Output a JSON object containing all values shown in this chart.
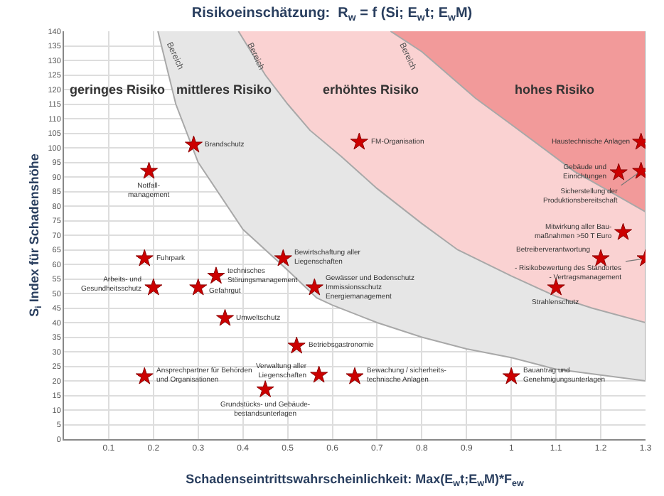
{
  "chart_data": {
    "type": "scatter",
    "title": "Risikoeinschätzung:  R$_{w}$ = f (Si; E$_{w}$t; E$_{w}$M)",
    "xlabel": "Schadenseintrittswahrscheinlichkeit: Max(E$_{w}$t;E$_{w}$M)*F$_{ew}$",
    "ylabel": "S$_{i}$ Index für Schadenshöhe",
    "xlim": [
      0,
      1.3
    ],
    "ylim": [
      0,
      140
    ],
    "xticks": [
      0.1,
      0.2,
      0.3,
      0.4,
      0.5,
      0.6,
      0.7,
      0.8,
      0.9,
      1.0,
      1.1,
      1.2,
      1.3
    ],
    "yticks": [
      0,
      5,
      10,
      15,
      20,
      25,
      30,
      35,
      40,
      45,
      50,
      55,
      60,
      65,
      70,
      75,
      80,
      85,
      90,
      95,
      100,
      105,
      110,
      115,
      120,
      125,
      130,
      135,
      140
    ],
    "grid": true,
    "series": [
      {
        "type": "area",
        "name": "Bereich",
        "color": "#e6e6e6",
        "x": [
          0.21,
          0.25,
          0.3,
          0.4,
          0.5,
          0.565,
          0.6,
          0.7,
          0.8,
          0.9,
          1.0,
          1.1,
          1.2,
          1.3,
          1.3
        ],
        "values": [
          140,
          115,
          95,
          72,
          58,
          48.5,
          46,
          40,
          35,
          31,
          28,
          24,
          22,
          20,
          140
        ]
      },
      {
        "type": "area",
        "name": "Bereich",
        "color": "#fad2d2",
        "x": [
          0.39,
          0.45,
          0.5,
          0.55,
          0.62,
          0.7,
          0.8,
          0.88,
          1.0,
          1.1,
          1.18,
          1.3,
          1.3
        ],
        "values": [
          140,
          125,
          115,
          106,
          97,
          86,
          74,
          65,
          56,
          49,
          45,
          40,
          140
        ]
      },
      {
        "type": "area",
        "name": "Bereich",
        "color": "#f29a9a",
        "x": [
          0.73,
          0.8,
          0.92,
          1.0,
          1.14,
          1.3,
          1.3
        ],
        "values": [
          140,
          133,
          117,
          108,
          92,
          78,
          140
        ]
      },
      {
        "color": "#cc0000",
        "marker": "star",
        "x": [
          0.29,
          0.19,
          0.18,
          0.2,
          0.3,
          0.34,
          0.36,
          0.49,
          0.52,
          0.18,
          0.45,
          0.57,
          0.56,
          0.65,
          1.0,
          0.66,
          1.29,
          1.24,
          1.29,
          1.25,
          1.2,
          1.3,
          1.1
        ],
        "values": [
          101,
          92,
          62,
          52,
          52,
          56,
          41.5,
          62,
          32,
          21.5,
          17,
          22,
          52,
          21.5,
          21.5,
          102,
          102,
          91.5,
          92,
          71,
          62,
          62,
          52
        ]
      }
    ],
    "annotations": [
      "geringes Risiko",
      "mittleres Risiko",
      "erhöhtes Risiko",
      "hohes Risiko",
      {
        "text": "Brandschutz",
        "x": 0.29,
        "y": 101
      },
      {
        "text": "Notfall-\nmanagement",
        "x": 0.19,
        "y": 92
      },
      {
        "text": "Fuhrpark",
        "x": 0.18,
        "y": 62
      },
      {
        "text": "Arbeits- und\nGesundheitsschutz",
        "x": 0.2,
        "y": 52
      },
      {
        "text": "Gefahrgut",
        "x": 0.3,
        "y": 52
      },
      {
        "text": "technisches\nStörungsmanagement",
        "x": 0.34,
        "y": 56
      },
      {
        "text": "Umweltschutz",
        "x": 0.36,
        "y": 41.5
      },
      {
        "text": "Bewirtschaftung aller\nLiegenschaften",
        "x": 0.49,
        "y": 62
      },
      {
        "text": "Betriebsgastronomie",
        "x": 0.52,
        "y": 32
      },
      {
        "text": "Ansprechpartner für Behörden\nund Organisationen",
        "x": 0.18,
        "y": 21.5
      },
      {
        "text": "Grundstücks- und Gebäude-\nbestandsunterlagen",
        "x": 0.45,
        "y": 17
      },
      {
        "text": "Verwaltung aller\nLiegenschaften",
        "x": 0.57,
        "y": 22
      },
      {
        "text": "Gewässer und Bodenschutz\nImmissionsschutz\nEnergiemanagement",
        "x": 0.56,
        "y": 52
      },
      {
        "text": "Bewachung / sicherheits-\ntechnische Anlagen",
        "x": 0.65,
        "y": 21.5
      },
      {
        "text": "Bauantrag und\nGenehmigungsunterlagen",
        "x": 1.0,
        "y": 21.5
      },
      {
        "text": "FM-Organisation",
        "x": 0.66,
        "y": 102
      },
      {
        "text": "Haustechnische Anlagen",
        "x": 1.29,
        "y": 102
      },
      {
        "text": "Gebäude und\nEinrichtungen",
        "x": 1.24,
        "y": 91.5
      },
      {
        "text": "Sicherstellung der\nProduktionsbereitschaft",
        "x": 1.29,
        "y": 92
      },
      {
        "text": "Mitwirkung aller Bau-\nmaßnahmen >50 T Euro",
        "x": 1.25,
        "y": 71
      },
      {
        "text": "Betreiberverantwortung",
        "x": 1.2,
        "y": 62
      },
      {
        "text": "- Risikobewertung des Standortes\n- Vertragsmanagement",
        "x": 1.3,
        "y": 62
      },
      {
        "text": "Strahlenschutz",
        "x": 1.1,
        "y": 52
      }
    ]
  }
}
